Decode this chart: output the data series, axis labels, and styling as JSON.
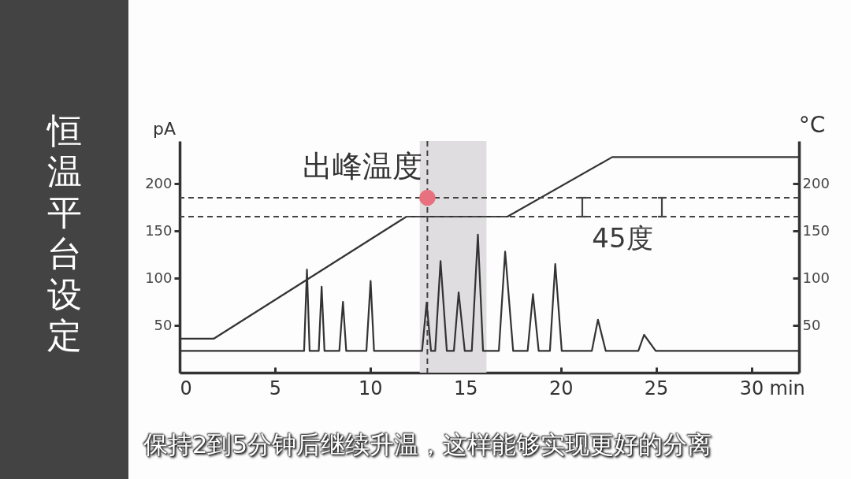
{
  "chart_data": {
    "type": "line",
    "title": "恒温平台设定",
    "xlabel": "min",
    "ylabel": "pA",
    "y2label": "°C",
    "annotations": [
      "45度",
      "保持2到5分钟后继续升温，这样能够实现更好的分离"
    ],
    "xlim": [
      0,
      32.5
    ],
    "xticks": [
      0,
      5,
      10,
      15,
      20,
      25,
      30
    ],
    "ylim": [
      0,
      245
    ],
    "yticks": [
      50,
      100,
      150,
      200
    ],
    "y2lim": [
      0,
      245
    ],
    "y2ticks": [
      50,
      100,
      150,
      200
    ],
    "series": [
      {
        "color": "#333333",
        "x": [
          0,
          6.53,
          6.68,
          6.82,
          7.3,
          7.45,
          7.6,
          8.38,
          8.57,
          8.74,
          9.8,
          10.02,
          10.2,
          12.72,
          12.96,
          13.19,
          13.41,
          13.69,
          14.02,
          14.39,
          14.64,
          14.96,
          15.33,
          15.65,
          15.92,
          16.75,
          17.08,
          17.5,
          18.26,
          18.54,
          18.84,
          19.43,
          19.71,
          20.05,
          21.63,
          21.95,
          22.36,
          24.07,
          24.37,
          24.98,
          32.5
        ],
        "values": [
          23,
          23,
          109,
          23,
          23,
          91,
          23,
          23,
          75,
          23,
          23,
          97,
          23,
          23,
          74,
          23,
          23,
          118,
          23,
          23,
          85,
          23,
          23,
          146,
          23,
          23,
          128,
          23,
          23,
          83,
          23,
          23,
          115,
          23,
          23,
          56,
          23,
          23,
          40,
          23,
          23
        ]
      },
      {
        "axis": "y2",
        "color": "#333333",
        "x": [
          0,
          1.8,
          11.9,
          17.2,
          22.7,
          32.5
        ],
        "values": [
          36,
          36,
          165,
          165,
          228,
          228
        ]
      },
      {
        "type": "scatter",
        "axis": "y2",
        "color": "#e8717f",
        "marker": "circle",
        "x": [
          13
        ],
        "values": [
          185
        ]
      }
    ],
    "ref_lines": [
      {
        "axis": "y2",
        "value": 185,
        "color": "#444444",
        "line_style": "dashed"
      },
      {
        "axis": "y2",
        "value": 165,
        "color": "#444444",
        "line_style": "dashed"
      },
      {
        "axis": "x",
        "value": 13,
        "label": "出峰温度",
        "color": "#444444",
        "line_style": "dashed"
      }
    ],
    "bands": [
      {
        "axis": "x",
        "from": 12.6,
        "to": 16.1,
        "color": "#dfdddf"
      }
    ]
  }
}
